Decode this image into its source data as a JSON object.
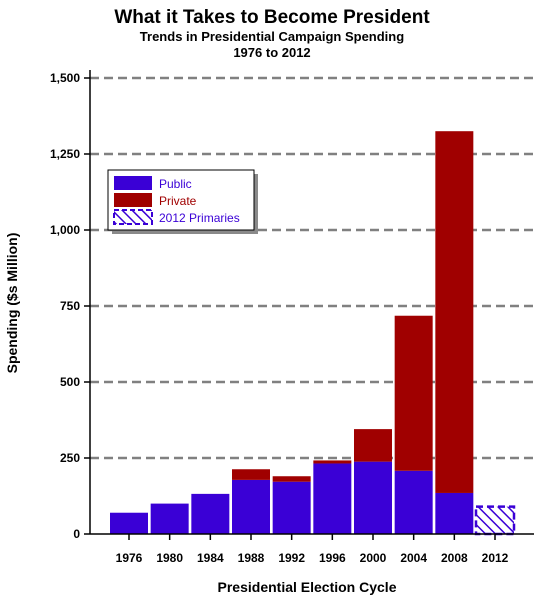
{
  "chart_data": {
    "type": "bar",
    "title": "What it Takes to Become President",
    "subtitle": "Trends in Presidential Campaign Spending",
    "subtitle2": "1976 to 2012",
    "xlabel": "Presidential Election Cycle",
    "ylabel": "Spending ($s Million)",
    "ylim": [
      0,
      1500
    ],
    "yticks": [
      0,
      250,
      500,
      750,
      "1,000",
      "1,250",
      "1,500"
    ],
    "categories": [
      "1976",
      "1980",
      "1984",
      "1988",
      "1992",
      "1996",
      "2000",
      "2004",
      "2008",
      "2012"
    ],
    "stacked": true,
    "series": [
      {
        "name": "Public",
        "color": "#3a00d6",
        "values": [
          70,
          100,
          132,
          178,
          172,
          232,
          238,
          208,
          135,
          0
        ]
      },
      {
        "name": "Private",
        "color": "#a00000",
        "values": [
          0,
          0,
          0,
          35,
          18,
          10,
          107,
          510,
          1190,
          0
        ]
      },
      {
        "name": "2012 Primaries",
        "color": "#3a00d6",
        "pattern": "hatched",
        "values": [
          0,
          0,
          0,
          0,
          0,
          0,
          0,
          0,
          0,
          90
        ]
      }
    ],
    "legend_position": "upper-left",
    "grid": "horizontal-dashed"
  }
}
